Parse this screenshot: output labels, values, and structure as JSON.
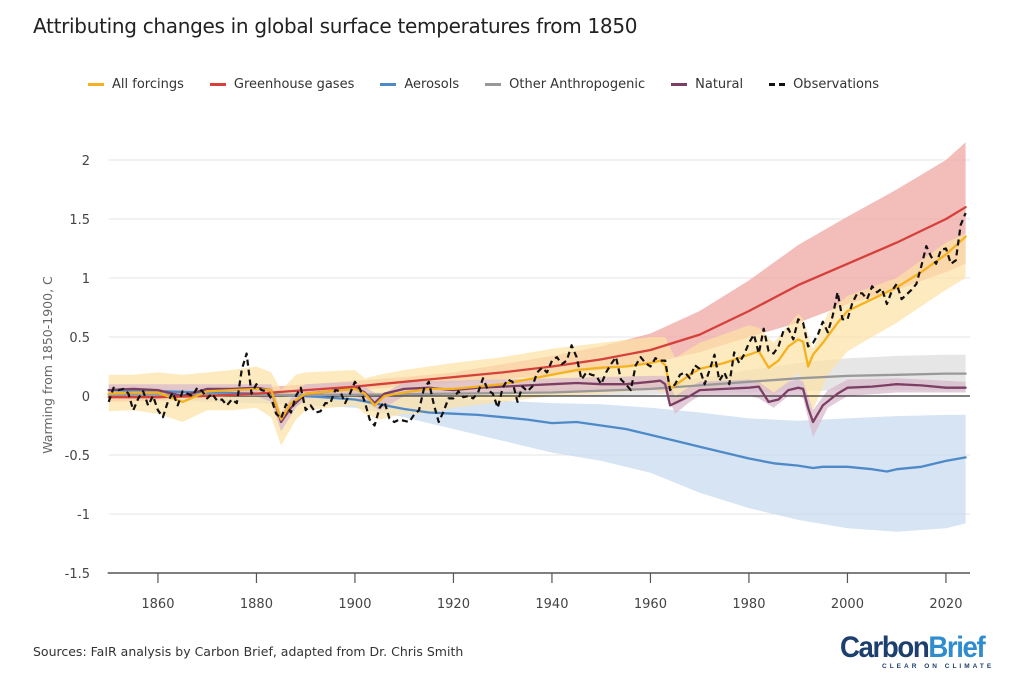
{
  "title": "Attributing changes in global surface temperatures from 1850",
  "source": "Sources: FaIR analysis by Carbon Brief, adapted from Dr. Chris Smith",
  "logo": {
    "carbon": "Carbon",
    "brief": "Brief",
    "tagline": "CLEAR ON CLIMATE"
  },
  "legend": [
    {
      "label": "All forcings",
      "color": "#f5b21f",
      "style": "solid"
    },
    {
      "label": "Greenhouse gases",
      "color": "#d6403a",
      "style": "solid"
    },
    {
      "label": "Aerosols",
      "color": "#4e8ac8",
      "style": "solid"
    },
    {
      "label": "Other Anthropogenic",
      "color": "#999999",
      "style": "solid"
    },
    {
      "label": "Natural",
      "color": "#7c3f63",
      "style": "solid"
    },
    {
      "label": "Observations",
      "color": "#111111",
      "style": "dashed"
    }
  ],
  "chart_data": {
    "type": "line",
    "title": "Attributing changes in global surface temperatures from 1850",
    "xlabel": "",
    "ylabel": "Warming from 1850-1900, C",
    "xlim": [
      1850,
      2024.5
    ],
    "ylim": [
      -1.5,
      2.2
    ],
    "x_ticks": [
      1860,
      1880,
      1900,
      1920,
      1940,
      1960,
      1980,
      2000,
      2020
    ],
    "y_ticks": [
      -1.5,
      -1,
      -0.5,
      0,
      0.5,
      1,
      1.5,
      2
    ],
    "y_tick_labels": [
      "-1.5",
      "-1",
      "-0.5",
      "0",
      "0.5",
      "1",
      "1.5",
      "2"
    ],
    "grid": "horizontal",
    "legend_position": "top",
    "bands": [
      {
        "name": "Greenhouse gases range",
        "color": "#eea3a0",
        "x": [
          1850,
          1860,
          1870,
          1880,
          1890,
          1900,
          1910,
          1920,
          1930,
          1940,
          1950,
          1960,
          1970,
          1980,
          1990,
          2000,
          2010,
          2020,
          2024
        ],
        "lower": [
          -0.05,
          -0.04,
          -0.03,
          0.0,
          0.02,
          0.05,
          0.08,
          0.11,
          0.14,
          0.18,
          0.22,
          0.28,
          0.37,
          0.5,
          0.62,
          0.78,
          0.9,
          1.05,
          1.12
        ],
        "upper": [
          0.02,
          0.03,
          0.04,
          0.07,
          0.1,
          0.13,
          0.16,
          0.2,
          0.27,
          0.34,
          0.42,
          0.53,
          0.72,
          0.98,
          1.28,
          1.52,
          1.75,
          2.0,
          2.15
        ]
      },
      {
        "name": "Aerosols range",
        "color": "#c6d9ef",
        "x": [
          1850,
          1860,
          1870,
          1880,
          1890,
          1900,
          1910,
          1920,
          1930,
          1940,
          1950,
          1960,
          1970,
          1980,
          1990,
          2000,
          2010,
          2020,
          2024
        ],
        "lower": [
          -0.02,
          -0.03,
          -0.05,
          -0.06,
          -0.08,
          -0.1,
          -0.18,
          -0.28,
          -0.38,
          -0.48,
          -0.55,
          -0.65,
          -0.82,
          -0.95,
          -1.05,
          -1.12,
          -1.15,
          -1.12,
          -1.08
        ],
        "upper": [
          0.08,
          0.07,
          0.05,
          0.04,
          0.03,
          0.02,
          -0.01,
          -0.02,
          -0.04,
          -0.06,
          -0.07,
          -0.1,
          -0.14,
          -0.19,
          -0.21,
          -0.19,
          -0.17,
          -0.16,
          -0.16
        ]
      },
      {
        "name": "Other Anthropogenic range",
        "color": "#dcdcdc",
        "x": [
          1850,
          1900,
          1920,
          1940,
          1960,
          1970,
          1980,
          1990,
          2000,
          2010,
          2020,
          2024
        ],
        "lower": [
          0.0,
          0.0,
          0.0,
          0.0,
          0.01,
          0.02,
          0.03,
          0.04,
          0.05,
          0.05,
          0.05,
          0.05
        ],
        "upper": [
          0.02,
          0.03,
          0.04,
          0.06,
          0.1,
          0.15,
          0.22,
          0.28,
          0.32,
          0.34,
          0.35,
          0.35
        ]
      },
      {
        "name": "All forcings range",
        "color": "#fde2a6",
        "x": [
          1850,
          1855,
          1860,
          1865,
          1870,
          1875,
          1880,
          1883,
          1885,
          1888,
          1890,
          1900,
          1902,
          1905,
          1910,
          1915,
          1920,
          1930,
          1940,
          1950,
          1960,
          1963,
          1965,
          1968,
          1970,
          1980,
          1982,
          1985,
          1990,
          1991,
          1993,
          1996,
          2000,
          2010,
          2020,
          2024
        ],
        "lower": [
          -0.13,
          -0.12,
          -0.15,
          -0.22,
          -0.12,
          -0.12,
          -0.1,
          -0.18,
          -0.42,
          -0.2,
          -0.12,
          -0.08,
          -0.15,
          -0.2,
          -0.15,
          -0.15,
          -0.1,
          -0.05,
          0.0,
          0.02,
          0.05,
          0.03,
          -0.08,
          0.0,
          0.05,
          0.12,
          0.08,
          0.0,
          0.2,
          0.1,
          -0.12,
          0.18,
          0.38,
          0.62,
          0.9,
          1.0
        ],
        "upper": [
          0.18,
          0.18,
          0.2,
          0.18,
          0.2,
          0.22,
          0.25,
          0.2,
          0.05,
          0.18,
          0.2,
          0.22,
          0.15,
          0.18,
          0.22,
          0.25,
          0.28,
          0.33,
          0.4,
          0.45,
          0.5,
          0.5,
          0.32,
          0.4,
          0.45,
          0.6,
          0.58,
          0.45,
          0.7,
          0.65,
          0.4,
          0.7,
          0.85,
          1.0,
          1.3,
          1.38
        ]
      },
      {
        "name": "Natural range",
        "color": "#d8b8cc",
        "x": [
          1850,
          1880,
          1883,
          1885,
          1888,
          1890,
          1900,
          1902,
          1905,
          1910,
          1960,
          1963,
          1965,
          1968,
          1970,
          1980,
          1982,
          1985,
          1988,
          1990,
          1991,
          1993,
          1996,
          2000,
          2010,
          2024
        ],
        "lower": [
          0.0,
          0.0,
          -0.05,
          -0.3,
          -0.1,
          -0.02,
          0.0,
          -0.05,
          -0.12,
          0.0,
          0.05,
          0.05,
          -0.15,
          -0.05,
          0.0,
          0.0,
          -0.02,
          -0.1,
          0.0,
          0.0,
          -0.02,
          -0.35,
          -0.1,
          0.0,
          0.03,
          0.03
        ],
        "upper": [
          0.1,
          0.1,
          0.1,
          -0.15,
          0.05,
          0.1,
          0.12,
          0.08,
          0.0,
          0.12,
          0.17,
          0.17,
          0.0,
          0.08,
          0.12,
          0.14,
          0.12,
          0.03,
          0.12,
          0.14,
          0.12,
          -0.12,
          0.05,
          0.14,
          0.15,
          0.12
        ]
      }
    ],
    "series": [
      {
        "name": "Aerosols",
        "color": "#4e8ac8",
        "x": [
          1850,
          1860,
          1870,
          1880,
          1890,
          1900,
          1905,
          1910,
          1915,
          1920,
          1925,
          1930,
          1935,
          1940,
          1945,
          1950,
          1955,
          1960,
          1965,
          1970,
          1975,
          1980,
          1985,
          1990,
          1993,
          1995,
          2000,
          2005,
          2008,
          2010,
          2015,
          2020,
          2024
        ],
        "values": [
          0.05,
          0.04,
          0.03,
          0.02,
          0.0,
          -0.03,
          -0.07,
          -0.11,
          -0.14,
          -0.15,
          -0.16,
          -0.18,
          -0.2,
          -0.23,
          -0.22,
          -0.25,
          -0.28,
          -0.33,
          -0.38,
          -0.43,
          -0.48,
          -0.53,
          -0.57,
          -0.59,
          -0.61,
          -0.6,
          -0.6,
          -0.62,
          -0.64,
          -0.62,
          -0.6,
          -0.55,
          -0.52
        ]
      },
      {
        "name": "Other Anthropogenic",
        "color": "#999999",
        "x": [
          1850,
          1880,
          1900,
          1920,
          1940,
          1960,
          1970,
          1980,
          1990,
          2000,
          2010,
          2020,
          2024
        ],
        "values": [
          0.01,
          0.01,
          0.01,
          0.02,
          0.03,
          0.06,
          0.09,
          0.12,
          0.15,
          0.17,
          0.18,
          0.19,
          0.19
        ]
      },
      {
        "name": "Natural",
        "color": "#7c3f63",
        "x": [
          1850,
          1855,
          1860,
          1865,
          1870,
          1875,
          1880,
          1883,
          1885,
          1887,
          1890,
          1895,
          1900,
          1902,
          1904,
          1906,
          1910,
          1915,
          1920,
          1925,
          1930,
          1935,
          1940,
          1945,
          1950,
          1955,
          1960,
          1962,
          1963,
          1964,
          1966,
          1968,
          1970,
          1975,
          1980,
          1982,
          1984,
          1986,
          1988,
          1990,
          1991,
          1992,
          1993,
          1995,
          1998,
          2000,
          2005,
          2010,
          2015,
          2020,
          2024
        ],
        "values": [
          0.05,
          0.06,
          0.05,
          0.0,
          0.06,
          0.06,
          0.07,
          0.05,
          -0.22,
          -0.1,
          0.02,
          0.04,
          0.07,
          0.03,
          -0.06,
          0.02,
          0.06,
          0.07,
          0.05,
          0.07,
          0.08,
          0.09,
          0.1,
          0.11,
          0.1,
          0.1,
          0.12,
          0.13,
          0.1,
          -0.08,
          -0.04,
          0.0,
          0.05,
          0.06,
          0.07,
          0.08,
          -0.05,
          -0.03,
          0.05,
          0.07,
          0.06,
          -0.1,
          -0.22,
          -0.08,
          0.02,
          0.07,
          0.08,
          0.1,
          0.09,
          0.07,
          0.07
        ]
      },
      {
        "name": "Greenhouse gases",
        "color": "#d6403a",
        "x": [
          1850,
          1860,
          1870,
          1880,
          1890,
          1900,
          1910,
          1920,
          1930,
          1940,
          1950,
          1960,
          1970,
          1980,
          1990,
          2000,
          2010,
          2020,
          2024
        ],
        "values": [
          -0.01,
          -0.01,
          0.0,
          0.02,
          0.05,
          0.08,
          0.12,
          0.16,
          0.2,
          0.25,
          0.31,
          0.39,
          0.52,
          0.72,
          0.94,
          1.12,
          1.3,
          1.5,
          1.6
        ]
      },
      {
        "name": "All forcings",
        "color": "#f5b21f",
        "x": [
          1850,
          1855,
          1860,
          1865,
          1870,
          1875,
          1880,
          1883,
          1885,
          1887,
          1890,
          1895,
          1900,
          1902,
          1904,
          1906,
          1910,
          1915,
          1920,
          1925,
          1930,
          1935,
          1940,
          1945,
          1950,
          1955,
          1960,
          1962,
          1963,
          1964,
          1966,
          1968,
          1970,
          1975,
          1980,
          1982,
          1984,
          1986,
          1988,
          1990,
          1991,
          1992,
          1993,
          1995,
          1998,
          2000,
          2005,
          2010,
          2015,
          2020,
          2024
        ],
        "values": [
          0.02,
          0.03,
          0.03,
          -0.05,
          0.04,
          0.05,
          0.06,
          0.05,
          -0.2,
          -0.06,
          0.02,
          0.04,
          0.06,
          0.02,
          -0.08,
          0.0,
          0.03,
          0.06,
          0.06,
          0.08,
          0.1,
          0.14,
          0.18,
          0.22,
          0.24,
          0.25,
          0.28,
          0.3,
          0.26,
          0.06,
          0.12,
          0.18,
          0.23,
          0.28,
          0.35,
          0.38,
          0.24,
          0.3,
          0.42,
          0.48,
          0.46,
          0.25,
          0.35,
          0.45,
          0.62,
          0.72,
          0.82,
          0.92,
          1.05,
          1.2,
          1.35
        ]
      },
      {
        "name": "Observations",
        "color": "#111111",
        "dashed": true,
        "x": [
          1850,
          1851,
          1852,
          1853,
          1854,
          1855,
          1856,
          1857,
          1858,
          1859,
          1860,
          1861,
          1862,
          1863,
          1864,
          1865,
          1866,
          1867,
          1868,
          1869,
          1870,
          1871,
          1872,
          1873,
          1874,
          1875,
          1876,
          1877,
          1878,
          1879,
          1880,
          1881,
          1882,
          1883,
          1884,
          1885,
          1886,
          1887,
          1888,
          1889,
          1890,
          1891,
          1892,
          1893,
          1894,
          1895,
          1896,
          1897,
          1898,
          1899,
          1900,
          1901,
          1902,
          1903,
          1904,
          1905,
          1906,
          1907,
          1908,
          1909,
          1910,
          1911,
          1912,
          1913,
          1914,
          1915,
          1916,
          1917,
          1918,
          1919,
          1920,
          1921,
          1922,
          1923,
          1924,
          1925,
          1926,
          1927,
          1928,
          1929,
          1930,
          1931,
          1932,
          1933,
          1934,
          1935,
          1936,
          1937,
          1938,
          1939,
          1940,
          1941,
          1942,
          1943,
          1944,
          1945,
          1946,
          1947,
          1948,
          1949,
          1950,
          1951,
          1952,
          1953,
          1954,
          1955,
          1956,
          1957,
          1958,
          1959,
          1960,
          1961,
          1962,
          1963,
          1964,
          1965,
          1966,
          1967,
          1968,
          1969,
          1970,
          1971,
          1972,
          1973,
          1974,
          1975,
          1976,
          1977,
          1978,
          1979,
          1980,
          1981,
          1982,
          1983,
          1984,
          1985,
          1986,
          1987,
          1988,
          1989,
          1990,
          1991,
          1992,
          1993,
          1994,
          1995,
          1996,
          1997,
          1998,
          1999,
          2000,
          2001,
          2002,
          2003,
          2004,
          2005,
          2006,
          2007,
          2008,
          2009,
          2010,
          2011,
          2012,
          2013,
          2014,
          2015,
          2016,
          2017,
          2018,
          2019,
          2020,
          2021,
          2022,
          2023,
          2024
        ],
        "values": [
          -0.05,
          0.07,
          0.05,
          0.06,
          0.02,
          -0.12,
          -0.02,
          0.04,
          -0.08,
          0.0,
          -0.12,
          -0.18,
          -0.05,
          0.03,
          -0.08,
          0.04,
          0.02,
          0.0,
          0.07,
          0.04,
          -0.02,
          0.02,
          -0.04,
          -0.03,
          -0.08,
          -0.03,
          -0.06,
          0.22,
          0.36,
          0.02,
          0.1,
          0.05,
          0.04,
          -0.02,
          -0.15,
          -0.19,
          -0.07,
          -0.14,
          0.0,
          0.07,
          -0.12,
          -0.08,
          -0.14,
          -0.13,
          -0.06,
          -0.06,
          0.05,
          0.04,
          -0.06,
          0.02,
          0.12,
          0.06,
          -0.05,
          -0.2,
          -0.25,
          -0.1,
          -0.05,
          -0.19,
          -0.22,
          -0.2,
          -0.21,
          -0.22,
          -0.16,
          -0.12,
          0.06,
          0.12,
          -0.07,
          -0.22,
          -0.13,
          -0.02,
          -0.02,
          0.04,
          -0.01,
          0.0,
          -0.02,
          0.03,
          0.15,
          0.05,
          0.02,
          -0.1,
          0.07,
          0.14,
          0.12,
          -0.05,
          0.08,
          0.04,
          0.08,
          0.2,
          0.24,
          0.2,
          0.3,
          0.33,
          0.27,
          0.3,
          0.43,
          0.33,
          0.14,
          0.2,
          0.18,
          0.17,
          0.1,
          0.2,
          0.27,
          0.33,
          0.14,
          0.1,
          0.05,
          0.26,
          0.33,
          0.28,
          0.25,
          0.32,
          0.3,
          0.3,
          0.05,
          0.1,
          0.18,
          0.2,
          0.15,
          0.26,
          0.23,
          0.1,
          0.22,
          0.35,
          0.13,
          0.2,
          0.1,
          0.37,
          0.28,
          0.35,
          0.45,
          0.52,
          0.36,
          0.57,
          0.38,
          0.36,
          0.42,
          0.55,
          0.57,
          0.48,
          0.65,
          0.62,
          0.42,
          0.45,
          0.52,
          0.63,
          0.54,
          0.68,
          0.88,
          0.65,
          0.65,
          0.79,
          0.87,
          0.87,
          0.82,
          0.93,
          0.88,
          0.91,
          0.78,
          0.89,
          0.95,
          0.82,
          0.86,
          0.9,
          0.95,
          1.1,
          1.27,
          1.18,
          1.12,
          1.24,
          1.25,
          1.12,
          1.15,
          1.45,
          1.55
        ]
      }
    ]
  }
}
